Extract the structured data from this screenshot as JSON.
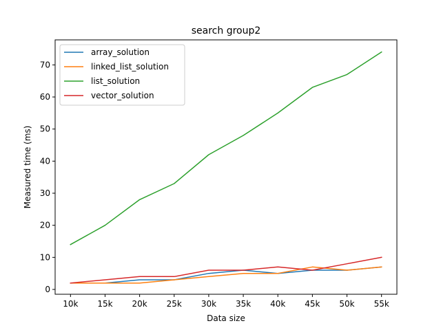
{
  "chart_data": {
    "type": "line",
    "title": "search group2",
    "xlabel": "Data size",
    "ylabel": "Measured time (ms)",
    "categories": [
      "10k",
      "15k",
      "20k",
      "25k",
      "30k",
      "35k",
      "40k",
      "45k",
      "50k",
      "55k"
    ],
    "ylim": [
      -1.5,
      77.8
    ],
    "yticks": [
      0,
      10,
      20,
      30,
      40,
      50,
      60,
      70
    ],
    "grid": false,
    "legend_position": "upper-left",
    "series": [
      {
        "name": "array_solution",
        "color": "#1f77b4",
        "values": [
          2,
          2,
          3,
          3,
          5,
          6,
          5,
          6,
          6,
          7
        ]
      },
      {
        "name": "linked_list_solution",
        "color": "#ff7f0e",
        "values": [
          2,
          2,
          2,
          3,
          4,
          5,
          5,
          7,
          6,
          7
        ]
      },
      {
        "name": "list_solution",
        "color": "#2ca02c",
        "values": [
          14,
          20,
          28,
          33,
          42,
          48,
          55,
          63,
          67,
          74
        ]
      },
      {
        "name": "vector_solution",
        "color": "#d62728",
        "values": [
          2,
          3,
          4,
          4,
          6,
          6,
          7,
          6,
          8,
          10
        ]
      }
    ]
  }
}
